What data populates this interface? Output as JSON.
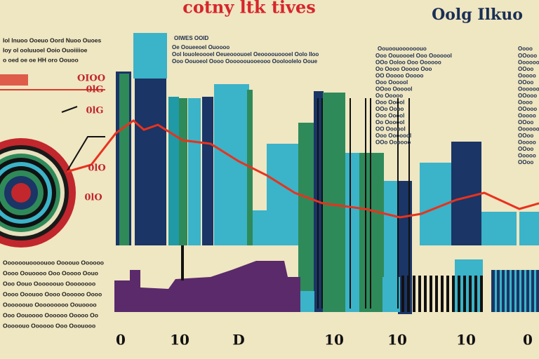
{
  "header": {
    "title": "cotny ltk tives",
    "brand": "Oolg Ilkuo"
  },
  "left_notes": [
    "Iol lnuoo Ooeuo Oord Nuoo Ouoes",
    "Ioy ol ooluuoel Ooio Ouoiiiioe",
    "o oed oe oe HH oro Oouoo"
  ],
  "left_labels": [
    "OIOO",
    "0lG",
    "0lG",
    "0lO",
    "0lO"
  ],
  "middle_block": {
    "heading": "OIWES OOID",
    "lines": [
      "Oe Ooueeoel Ouoooo",
      "Ool Iouoleoooel Oeueooouoel Oeoooouoooel Oolo Iloo",
      "Ooo Oouoeol Oooo Oooooouooeooo Oooloolelo Ooue"
    ]
  },
  "center_list": {
    "heading": "Oouoouoooooouo",
    "items": [
      "Ooo Oouoooel Ooo Ooooool",
      "OOo Ooloo Ooo Oooooo",
      "Oo Oooo Ooooo Ooo",
      "OO Ooooo Ooooo",
      "Ooo Oooool",
      "OOoo Oooool",
      "Oo Ooooo",
      "Ooo Ooool",
      "OOo Oooo",
      "Ooo Ooool",
      "Oo Oooool",
      "OO Oooool",
      "Ooo Ooooool",
      "OOo Oooooo"
    ]
  },
  "right_list": {
    "heading": "Oooo",
    "items": [
      "OOooo",
      "Oooooo",
      "OOoo",
      "Ooooo",
      "OOoo",
      "Oooooo",
      "OOooo",
      "Oooo",
      "OOooo",
      "Ooooo",
      "OOoo",
      "Oooooo",
      "OOoo",
      "Ooooo",
      "OOoo",
      "Ooooo",
      "OOoo"
    ]
  },
  "bottom_notes": [
    "Oooooouoooouoo Oooouo Oooooo",
    "Oooo Oouoooo Ooo Ooooo Oouo",
    "Ooo Oouo Oooooouo Oooooooo",
    "Oooo Ooouoo Oooo Oooooo Oooo",
    "Oooooouo Ooooooooo Oouoooo",
    "Ooo Oouoooo Oooooo Ooooo Oo",
    "Ooooouo Oooooo Ooo Ooouooo"
  ],
  "axis_labels": [
    "0",
    "10",
    "D",
    "10",
    "10",
    "10",
    "0"
  ]
}
